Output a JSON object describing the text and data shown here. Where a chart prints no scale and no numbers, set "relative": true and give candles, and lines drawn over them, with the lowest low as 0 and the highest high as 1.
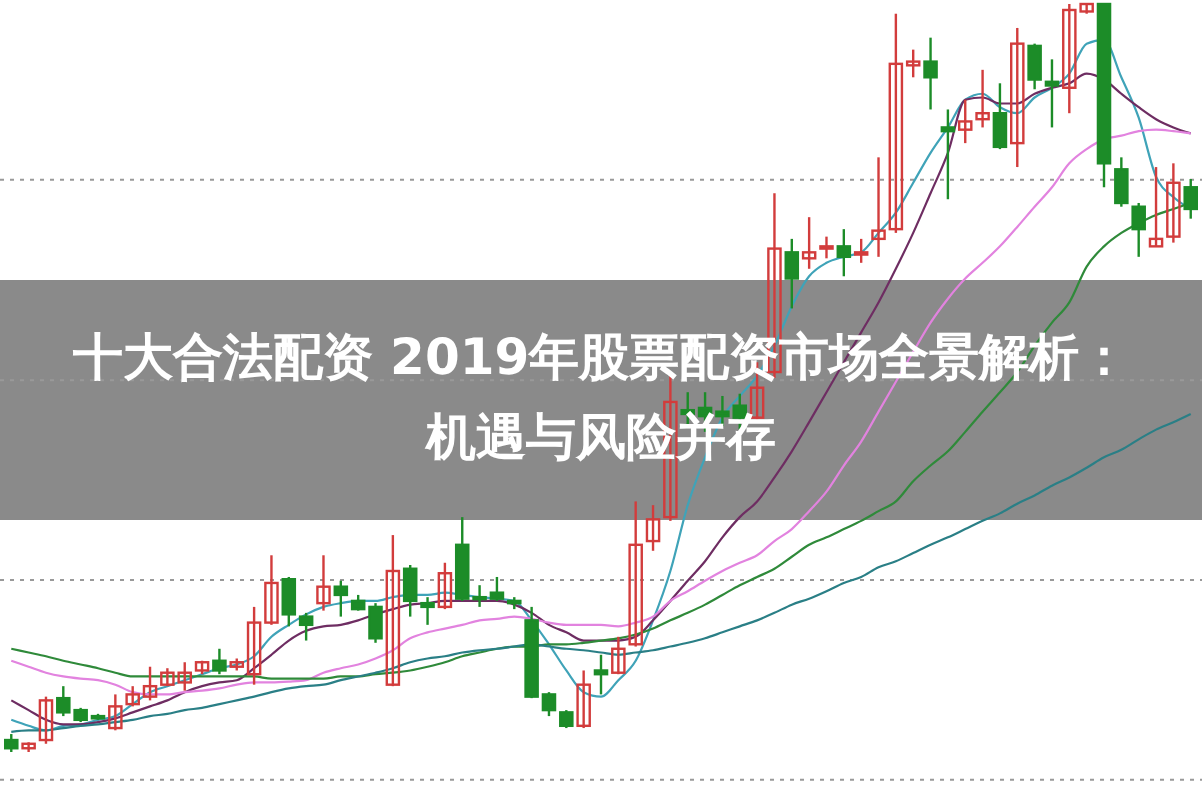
{
  "chart_data": {
    "type": "candlestick",
    "title": "十大合法配资 2019年股票配资市场全景解析：机遇与风险并存",
    "relative": true,
    "ref_lines": [
      {
        "axis": "y",
        "value": 0.765,
        "color": "#999999",
        "line_style": "dotted"
      },
      {
        "axis": "y",
        "value": 0.497,
        "color": "#999999",
        "line_style": "dotted"
      },
      {
        "axis": "y",
        "value": 0.23,
        "color": "#999999",
        "line_style": "dotted"
      },
      {
        "axis": "y",
        "value": -0.037,
        "color": "#999999",
        "line_style": "dotted"
      }
    ],
    "categories": [
      null,
      null,
      null,
      null,
      null,
      null,
      null,
      null,
      null,
      null,
      null,
      null,
      null,
      null,
      null,
      null,
      null,
      null,
      null,
      null,
      null,
      null,
      null,
      null,
      null,
      null,
      null,
      null,
      null,
      null,
      null,
      null,
      null,
      null,
      null,
      null,
      null,
      null,
      null,
      null,
      null,
      null,
      null,
      null,
      null,
      null,
      null,
      null,
      null,
      null,
      null,
      null,
      null,
      null,
      null,
      null,
      null,
      null,
      null,
      null,
      null,
      null,
      null,
      null,
      null,
      null,
      null,
      null,
      null
    ],
    "ohlc": [
      [
        0.016,
        0.024,
        0,
        0.005
      ],
      [
        0.005,
        0.013,
        0,
        0.011
      ],
      [
        0.016,
        0.074,
        0.011,
        0.069
      ],
      [
        0.072,
        0.088,
        0.048,
        0.053
      ],
      [
        0.056,
        0.059,
        0.04,
        0.043
      ],
      [
        0.048,
        0.051,
        0.043,
        0.045
      ],
      [
        0.032,
        0.077,
        0.029,
        0.061
      ],
      [
        0.064,
        0.088,
        0.061,
        0.077
      ],
      [
        0.074,
        0.114,
        0.069,
        0.088
      ],
      [
        0.09,
        0.112,
        0.088,
        0.106
      ],
      [
        0.093,
        0.12,
        0.082,
        0.106
      ],
      [
        0.109,
        0.122,
        0.104,
        0.12
      ],
      [
        0.122,
        0.138,
        0.104,
        0.109
      ],
      [
        0.114,
        0.125,
        0.109,
        0.12
      ],
      [
        0.104,
        0.194,
        0.09,
        0.173
      ],
      [
        0.173,
        0.263,
        0.17,
        0.226
      ],
      [
        0.231,
        0.234,
        0.168,
        0.184
      ],
      [
        0.181,
        0.186,
        0.149,
        0.17
      ],
      [
        0.199,
        0.263,
        0.189,
        0.221
      ],
      [
        0.221,
        0.229,
        0.181,
        0.21
      ],
      [
        0.202,
        0.21,
        0.189,
        0.191
      ],
      [
        0.194,
        0.199,
        0.146,
        0.152
      ],
      [
        0.09,
        0.29,
        0.088,
        0.242
      ],
      [
        0.245,
        0.25,
        0.181,
        0.202
      ],
      [
        0.199,
        0.207,
        0.17,
        0.194
      ],
      [
        0.194,
        0.253,
        0.191,
        0.239
      ],
      [
        0.277,
        0.314,
        0.202,
        0.205
      ],
      [
        0.207,
        0.223,
        0.194,
        0.205
      ],
      [
        0.213,
        0.234,
        0.202,
        0.205
      ],
      [
        0.202,
        0.207,
        0.191,
        0.199
      ],
      [
        0.176,
        0.194,
        0.072,
        0.074
      ],
      [
        0.077,
        0.08,
        0.048,
        0.056
      ],
      [
        0.053,
        0.056,
        0.032,
        0.035
      ],
      [
        0.035,
        0.109,
        0.032,
        0.09
      ],
      [
        0.109,
        0.13,
        0.077,
        0.104
      ],
      [
        0.106,
        0.154,
        0.104,
        0.138
      ],
      [
        0.144,
        0.335,
        0.141,
        0.277
      ],
      [
        0.282,
        0.33,
        0.269,
        0.311
      ],
      [
        0.314,
        0.508,
        0.309,
        0.468
      ],
      [
        0.457,
        0.481,
        0.436,
        0.452
      ],
      [
        0.46,
        0.481,
        0.428,
        0.449
      ],
      [
        0.455,
        0.476,
        0.436,
        0.449
      ],
      [
        0.463,
        0.479,
        0.431,
        0.447
      ],
      [
        0.447,
        0.521,
        0.441,
        0.487
      ],
      [
        0.508,
        0.747,
        0.5,
        0.673
      ],
      [
        0.668,
        0.686,
        0.593,
        0.633
      ],
      [
        0.66,
        0.715,
        0.646,
        0.668
      ],
      [
        0.673,
        0.689,
        0.66,
        0.676
      ],
      [
        0.676,
        0.699,
        0.636,
        0.662
      ],
      [
        0.665,
        0.686,
        0.654,
        0.668
      ],
      [
        0.686,
        0.795,
        0.662,
        0.697
      ],
      [
        0.699,
        0.987,
        0.694,
        0.92
      ],
      [
        0.918,
        0.939,
        0.902,
        0.923
      ],
      [
        0.923,
        0.955,
        0.859,
        0.902
      ],
      [
        0.835,
        0.859,
        0.739,
        0.83
      ],
      [
        0.832,
        0.872,
        0.814,
        0.843
      ],
      [
        0.846,
        0.912,
        0.835,
        0.854
      ],
      [
        0.854,
        0.894,
        0.806,
        0.809
      ],
      [
        0.814,
        0.968,
        0.782,
        0.947
      ],
      [
        0.944,
        0.947,
        0.886,
        0.899
      ],
      [
        0.896,
        0.926,
        0.835,
        0.891
      ],
      [
        0.888,
        1,
        0.854,
        0.992
      ],
      [
        0.99,
        1,
        0.987,
        1
      ],
      [
        1,
        1,
        0.755,
        0.787
      ],
      [
        0.779,
        0.795,
        0.729,
        0.734
      ],
      [
        0.729,
        0.734,
        0.662,
        0.699
      ],
      [
        0.676,
        0.782,
        0.676,
        0.686
      ],
      [
        0.689,
        0.787,
        0.681,
        0.761
      ],
      [
        0.755,
        0.766,
        0.713,
        0.726
      ]
    ],
    "series": [
      {
        "type": "line",
        "color": "#3fa3b8",
        "values": [
          0.043,
          0.035,
          0.029,
          0.035,
          0.037,
          0.043,
          0.048,
          0.064,
          0.08,
          0.088,
          0.096,
          0.104,
          0.112,
          0.117,
          0.128,
          0.154,
          0.17,
          0.184,
          0.194,
          0.199,
          0.202,
          0.202,
          0.207,
          0.21,
          0.21,
          0.213,
          0.21,
          0.207,
          0.205,
          0.202,
          0.176,
          0.144,
          0.109,
          0.08,
          0.074,
          0.096,
          0.122,
          0.176,
          0.242,
          0.33,
          0.394,
          0.447,
          0.476,
          0.503,
          0.543,
          0.596,
          0.636,
          0.654,
          0.662,
          0.668,
          0.694,
          0.721,
          0.761,
          0.801,
          0.835,
          0.872,
          0.88,
          0.862,
          0.854,
          0.875,
          0.888,
          0.907,
          0.947,
          0.952,
          0.902,
          0.848,
          0.769,
          0.742,
          0.726
        ]
      },
      {
        "type": "line",
        "color": "#6e2d62",
        "values": [
          0.069,
          0.056,
          0.043,
          0.037,
          0.037,
          0.04,
          0.045,
          0.053,
          0.061,
          0.069,
          0.08,
          0.088,
          0.093,
          0.096,
          0.112,
          0.13,
          0.149,
          0.162,
          0.168,
          0.17,
          0.176,
          0.184,
          0.191,
          0.197,
          0.199,
          0.202,
          0.202,
          0.202,
          0.202,
          0.197,
          0.186,
          0.17,
          0.16,
          0.149,
          0.149,
          0.149,
          0.154,
          0.176,
          0.202,
          0.229,
          0.255,
          0.287,
          0.314,
          0.335,
          0.367,
          0.402,
          0.441,
          0.481,
          0.521,
          0.561,
          0.601,
          0.646,
          0.694,
          0.747,
          0.801,
          0.872,
          0.875,
          0.867,
          0.867,
          0.88,
          0.888,
          0.894,
          0.907,
          0.899,
          0.88,
          0.862,
          0.846,
          0.835,
          0.827
        ]
      },
      {
        "type": "line",
        "color": "#e283df",
        "values": [
          0.122,
          0.114,
          0.106,
          0.101,
          0.098,
          0.096,
          0.09,
          0.08,
          0.077,
          0.077,
          0.08,
          0.082,
          0.085,
          0.09,
          0.093,
          0.093,
          0.094,
          0.096,
          0.106,
          0.112,
          0.117,
          0.125,
          0.136,
          0.152,
          0.16,
          0.165,
          0.17,
          0.176,
          0.178,
          0.181,
          0.178,
          0.173,
          0.17,
          0.17,
          0.17,
          0.168,
          0.173,
          0.181,
          0.202,
          0.215,
          0.229,
          0.242,
          0.253,
          0.263,
          0.282,
          0.298,
          0.322,
          0.348,
          0.383,
          0.415,
          0.455,
          0.495,
          0.535,
          0.574,
          0.606,
          0.633,
          0.654,
          0.676,
          0.702,
          0.729,
          0.755,
          0.787,
          0.806,
          0.819,
          0.824,
          0.83,
          0.832,
          0.83,
          0.827
        ]
      },
      {
        "type": "line",
        "color": "#2f8a3a",
        "values": [
          0.138,
          0.133,
          0.128,
          0.122,
          0.117,
          0.112,
          0.106,
          0.101,
          0.101,
          0.101,
          0.101,
          0.101,
          0.101,
          0.101,
          0.101,
          0.098,
          0.098,
          0.098,
          0.098,
          0.101,
          0.101,
          0.104,
          0.106,
          0.109,
          0.114,
          0.12,
          0.128,
          0.133,
          0.138,
          0.141,
          0.141,
          0.144,
          0.144,
          0.146,
          0.149,
          0.152,
          0.157,
          0.165,
          0.176,
          0.186,
          0.197,
          0.21,
          0.223,
          0.234,
          0.245,
          0.261,
          0.277,
          0.287,
          0.298,
          0.309,
          0.322,
          0.335,
          0.362,
          0.383,
          0.402,
          0.428,
          0.455,
          0.481,
          0.508,
          0.543,
          0.574,
          0.601,
          0.649,
          0.676,
          0.694,
          0.707,
          0.718,
          0.726,
          0.734
        ]
      },
      {
        "type": "line",
        "color": "#2a7f86",
        "values": [
          0.027,
          0.029,
          0.029,
          0.032,
          0.035,
          0.037,
          0.04,
          0.043,
          0.048,
          0.051,
          0.056,
          0.059,
          0.064,
          0.069,
          0.074,
          0.08,
          0.085,
          0.088,
          0.09,
          0.096,
          0.101,
          0.106,
          0.112,
          0.12,
          0.125,
          0.128,
          0.133,
          0.136,
          0.138,
          0.141,
          0.144,
          0.141,
          0.138,
          0.136,
          0.133,
          0.13,
          0.133,
          0.136,
          0.141,
          0.146,
          0.152,
          0.16,
          0.168,
          0.176,
          0.186,
          0.197,
          0.205,
          0.215,
          0.226,
          0.234,
          0.247,
          0.255,
          0.266,
          0.277,
          0.287,
          0.298,
          0.309,
          0.319,
          0.332,
          0.343,
          0.356,
          0.367,
          0.38,
          0.394,
          0.404,
          0.418,
          0.431,
          0.441,
          0.452
        ]
      }
    ]
  }
}
